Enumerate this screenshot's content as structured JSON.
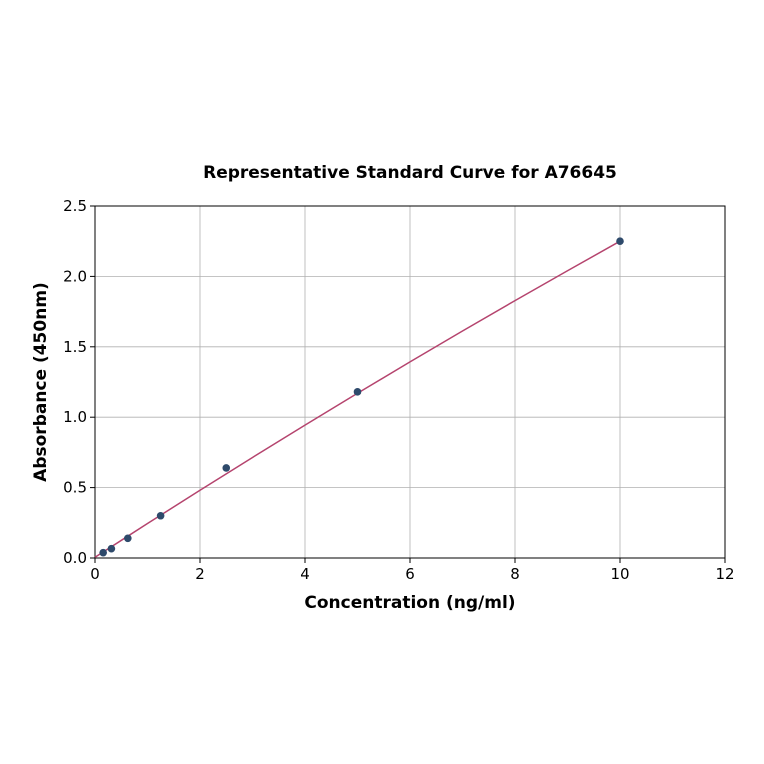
{
  "chart_data": {
    "type": "scatter",
    "title": "Representative Standard Curve for A76645",
    "xlabel": "Concentration (ng/ml)",
    "ylabel": "Absorbance (450nm)",
    "xlim": [
      0,
      12
    ],
    "ylim": [
      0,
      2.5
    ],
    "xticks": [
      "0",
      "2",
      "4",
      "6",
      "8",
      "10",
      "12"
    ],
    "yticks": [
      "0.0",
      "0.5",
      "1.0",
      "1.5",
      "2.0",
      "2.5"
    ],
    "grid": true,
    "points": {
      "x": [
        0.156,
        0.3125,
        0.625,
        1.25,
        2.5,
        5,
        10
      ],
      "y": [
        0.038,
        0.066,
        0.14,
        0.3,
        0.64,
        1.18,
        2.25
      ],
      "color": "#2e4a6b"
    },
    "fit_line": {
      "x": [
        0,
        1,
        2,
        3,
        4,
        5,
        6,
        7,
        8,
        9,
        10
      ],
      "y": [
        0.005,
        0.245,
        0.481,
        0.714,
        0.944,
        1.17,
        1.393,
        1.612,
        1.828,
        2.04,
        2.25
      ],
      "color": "#b5446e"
    }
  }
}
